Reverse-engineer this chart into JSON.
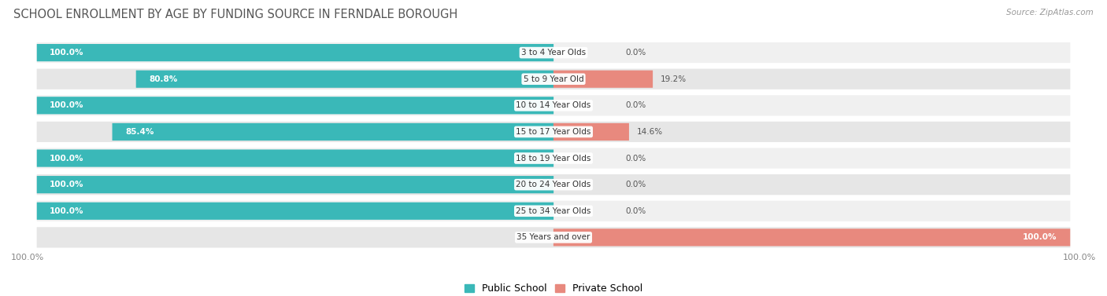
{
  "title": "SCHOOL ENROLLMENT BY AGE BY FUNDING SOURCE IN FERNDALE BOROUGH",
  "source": "Source: ZipAtlas.com",
  "categories": [
    "3 to 4 Year Olds",
    "5 to 9 Year Old",
    "10 to 14 Year Olds",
    "15 to 17 Year Olds",
    "18 to 19 Year Olds",
    "20 to 24 Year Olds",
    "25 to 34 Year Olds",
    "35 Years and over"
  ],
  "public_values": [
    100.0,
    80.8,
    100.0,
    85.4,
    100.0,
    100.0,
    100.0,
    0.0
  ],
  "private_values": [
    0.0,
    19.2,
    0.0,
    14.6,
    0.0,
    0.0,
    0.0,
    100.0
  ],
  "public_color": "#3ab8b8",
  "private_color": "#e8897e",
  "private_small_color": "#f0b0a8",
  "row_bg_even": "#f0f0f0",
  "row_bg_odd": "#e6e6e6",
  "title_fontsize": 10.5,
  "label_fontsize": 8.0,
  "bar_height": 0.62,
  "x_left_label": "100.0%",
  "x_right_label": "100.0%",
  "legend_public": "Public School",
  "legend_private": "Private School"
}
